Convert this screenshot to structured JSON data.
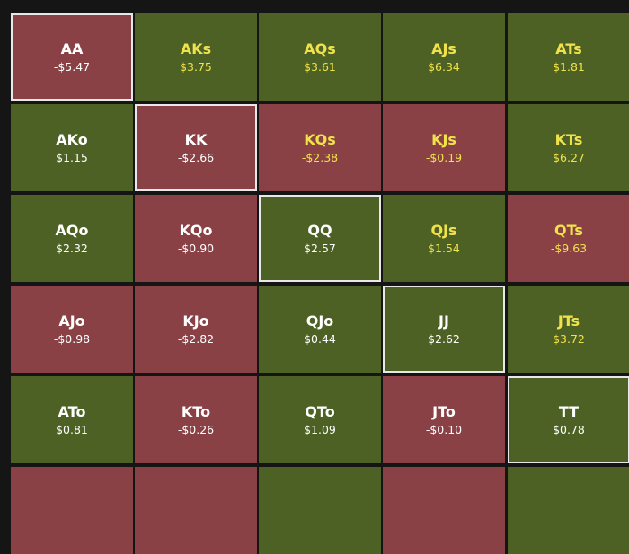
{
  "colors": {
    "background": "#151515",
    "positive": "#4d6124",
    "negative": "#8a4146",
    "suited_text": "#f0e24a",
    "offsuit_text": "#ffffff",
    "pair_border": "#e8e8e8"
  },
  "rows": [
    [
      {
        "hand": "AA",
        "value": "-$5.47",
        "kind": "pair",
        "result": "neg"
      },
      {
        "hand": "AKs",
        "value": "$3.75",
        "kind": "suited",
        "result": "pos"
      },
      {
        "hand": "AQs",
        "value": "$3.61",
        "kind": "suited",
        "result": "pos"
      },
      {
        "hand": "AJs",
        "value": "$6.34",
        "kind": "suited",
        "result": "pos"
      },
      {
        "hand": "ATs",
        "value": "$1.81",
        "kind": "suited",
        "result": "pos"
      }
    ],
    [
      {
        "hand": "AKo",
        "value": "$1.15",
        "kind": "offsuit",
        "result": "pos"
      },
      {
        "hand": "KK",
        "value": "-$2.66",
        "kind": "pair",
        "result": "neg"
      },
      {
        "hand": "KQs",
        "value": "-$2.38",
        "kind": "suited",
        "result": "neg"
      },
      {
        "hand": "KJs",
        "value": "-$0.19",
        "kind": "suited",
        "result": "neg"
      },
      {
        "hand": "KTs",
        "value": "$6.27",
        "kind": "suited",
        "result": "pos"
      }
    ],
    [
      {
        "hand": "AQo",
        "value": "$2.32",
        "kind": "offsuit",
        "result": "pos"
      },
      {
        "hand": "KQo",
        "value": "-$0.90",
        "kind": "offsuit",
        "result": "neg"
      },
      {
        "hand": "QQ",
        "value": "$2.57",
        "kind": "pair",
        "result": "pos"
      },
      {
        "hand": "QJs",
        "value": "$1.54",
        "kind": "suited",
        "result": "pos"
      },
      {
        "hand": "QTs",
        "value": "-$9.63",
        "kind": "suited",
        "result": "neg"
      }
    ],
    [
      {
        "hand": "AJo",
        "value": "-$0.98",
        "kind": "offsuit",
        "result": "neg"
      },
      {
        "hand": "KJo",
        "value": "-$2.82",
        "kind": "offsuit",
        "result": "neg"
      },
      {
        "hand": "QJo",
        "value": "$0.44",
        "kind": "offsuit",
        "result": "pos"
      },
      {
        "hand": "JJ",
        "value": "$2.62",
        "kind": "pair",
        "result": "pos"
      },
      {
        "hand": "JTs",
        "value": "$3.72",
        "kind": "suited",
        "result": "pos"
      }
    ],
    [
      {
        "hand": "ATo",
        "value": "$0.81",
        "kind": "offsuit",
        "result": "pos"
      },
      {
        "hand": "KTo",
        "value": "-$0.26",
        "kind": "offsuit",
        "result": "neg"
      },
      {
        "hand": "QTo",
        "value": "$1.09",
        "kind": "offsuit",
        "result": "pos"
      },
      {
        "hand": "JTo",
        "value": "-$0.10",
        "kind": "offsuit",
        "result": "neg"
      },
      {
        "hand": "TT",
        "value": "$0.78",
        "kind": "pair",
        "result": "pos"
      }
    ],
    [
      {
        "hand": "",
        "value": "",
        "kind": "offsuit",
        "result": "neg"
      },
      {
        "hand": "",
        "value": "",
        "kind": "offsuit",
        "result": "neg"
      },
      {
        "hand": "",
        "value": "",
        "kind": "offsuit",
        "result": "pos"
      },
      {
        "hand": "",
        "value": "",
        "kind": "offsuit",
        "result": "neg"
      },
      {
        "hand": "",
        "value": "",
        "kind": "offsuit",
        "result": "pos"
      }
    ]
  ]
}
